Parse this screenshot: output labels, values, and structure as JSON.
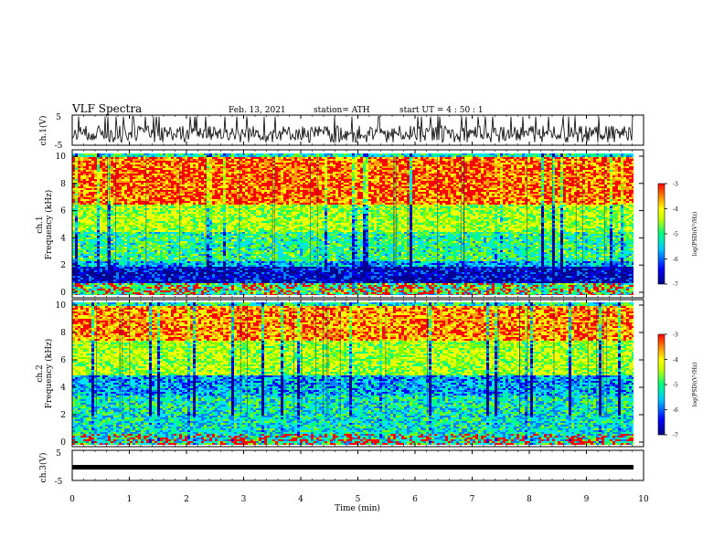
{
  "header": {
    "title": "VLF Spectra",
    "date": "Feb. 13, 2021",
    "station": "station= ATH",
    "start": "start  UT =   4 : 50 : 1"
  },
  "colors": {
    "frame": "#000000",
    "background": "#ffffff",
    "colormap": [
      "#0000a0",
      "#0000ff",
      "#00c0ff",
      "#00ff80",
      "#c0ff00",
      "#ffff00",
      "#ff8000",
      "#ff0000"
    ]
  },
  "chart_data": [
    {
      "id": "ch1-waveform",
      "type": "line",
      "ylabel": "ch.1(V)",
      "ylim": [
        -5,
        5
      ],
      "yticks": [
        "5",
        "-5"
      ],
      "xlim": [
        0,
        10
      ],
      "description": "continuous noisy signal, roughly centred near -1 V with spikes reaching +5"
    },
    {
      "id": "ch1-spectrogram",
      "type": "heatmap",
      "ylabel": "ch.1\nFrequency  (kHz)",
      "ylim": [
        0,
        10
      ],
      "yticks": [
        "0",
        "2",
        "4",
        "6",
        "8",
        "10"
      ],
      "xlim": [
        0,
        10
      ],
      "colorbar": {
        "label": "log(PSD)(V²/Hz)",
        "range": [
          -7,
          -3
        ],
        "ticks": [
          "-3",
          "-4",
          "-5",
          "-6",
          "-7"
        ]
      },
      "bands": [
        {
          "from": 0.0,
          "to": 0.8,
          "level": 0.45
        },
        {
          "from": 0.8,
          "to": 2.0,
          "level": 0.1
        },
        {
          "from": 2.0,
          "to": 2.4,
          "level": 0.3
        },
        {
          "from": 2.4,
          "to": 4.5,
          "level": 0.45
        },
        {
          "from": 4.5,
          "to": 6.5,
          "level": 0.6
        },
        {
          "from": 6.5,
          "to": 10.0,
          "level": 0.9
        }
      ]
    },
    {
      "id": "ch2-spectrogram",
      "type": "heatmap",
      "ylabel": "ch.2\nFrequency  (kHz)",
      "ylim": [
        0,
        10
      ],
      "yticks": [
        "0",
        "2",
        "4",
        "6",
        "8",
        "10"
      ],
      "xlim": [
        0,
        10
      ],
      "colorbar": {
        "label": "log(PSD)(V²/Hz)",
        "range": [
          -7,
          -3
        ],
        "ticks": [
          "-3",
          "-4",
          "-5",
          "-6",
          "-7"
        ]
      },
      "bands": [
        {
          "from": 0.0,
          "to": 2.2,
          "level": 0.38
        },
        {
          "from": 2.2,
          "to": 3.5,
          "level": 0.4
        },
        {
          "from": 3.5,
          "to": 5.0,
          "level": 0.3
        },
        {
          "from": 5.0,
          "to": 7.5,
          "level": 0.6
        },
        {
          "from": 7.5,
          "to": 10.0,
          "level": 0.85
        }
      ]
    },
    {
      "id": "ch3-waveform",
      "type": "line",
      "ylabel": "ch.3(V)",
      "ylim": [
        -5,
        5
      ],
      "yticks": [
        "5",
        "-5"
      ],
      "xlim": [
        0,
        10
      ],
      "description": "flat thick line at about -1 V"
    }
  ],
  "xaxis": {
    "label": "Time  (min)",
    "ticks": [
      "0",
      "1",
      "2",
      "3",
      "4",
      "5",
      "6",
      "7",
      "8",
      "9",
      "10"
    ]
  }
}
